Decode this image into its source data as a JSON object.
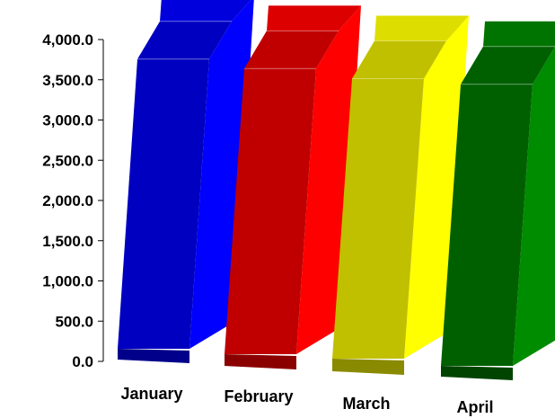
{
  "chart_data": {
    "type": "bar",
    "title": "",
    "xlabel": "",
    "ylabel": "",
    "categories": [
      "January",
      "February",
      "March",
      "April"
    ],
    "values": [
      3600,
      3550,
      3480,
      3500
    ],
    "ylim": [
      0,
      4000
    ],
    "yticks": [
      "0.0",
      "500.0",
      "1,000.0",
      "1,500.0",
      "2,000.0",
      "2,500.0",
      "3,000.0",
      "3,500.0",
      "4,000.0"
    ],
    "grid": false,
    "legend": "none",
    "colors": [
      {
        "front": "#0000c0",
        "side": "#0000ff",
        "top": "#0000dd",
        "bottom": "#00008a"
      },
      {
        "front": "#c00000",
        "side": "#ff0000",
        "top": "#dd0000",
        "bottom": "#8a0000"
      },
      {
        "front": "#c0c000",
        "side": "#ffff00",
        "top": "#dddd00",
        "bottom": "#8a8a00"
      },
      {
        "front": "#006000",
        "side": "#008c00",
        "top": "#007400",
        "bottom": "#004400"
      }
    ]
  }
}
